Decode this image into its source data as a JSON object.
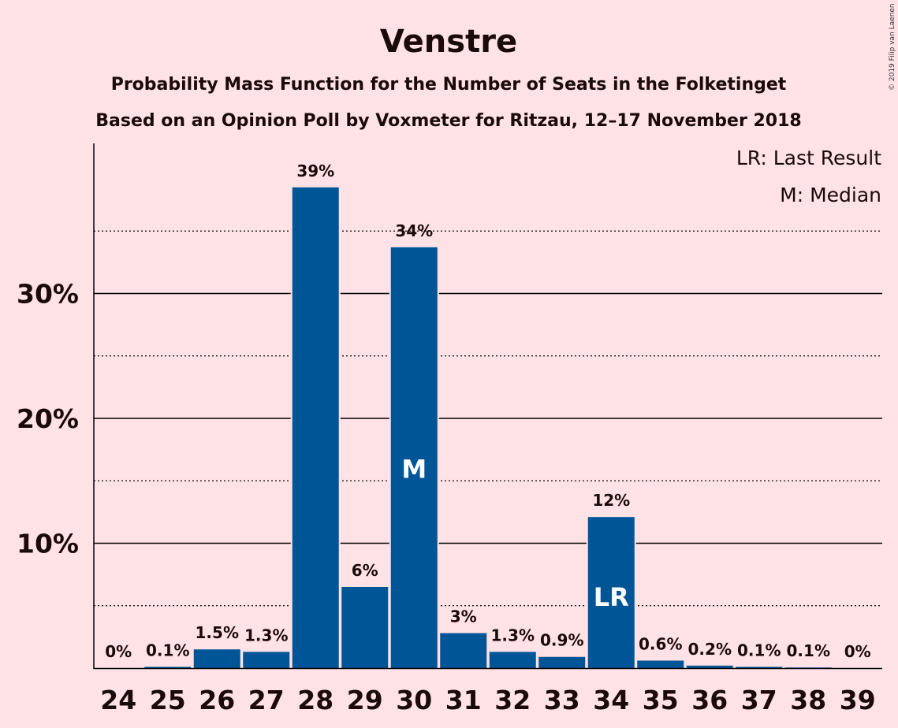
{
  "copyright": "© 2019 Filip van Laenen",
  "chart_data": {
    "type": "bar",
    "title": "Venstre",
    "subtitle_1": "Probability Mass Function for the Number of Seats in the Folketinget",
    "subtitle_2": "Based on an Opinion Poll by Voxmeter for Ritzau, 12–17 November 2018",
    "legend": [
      "LR: Last Result",
      "M: Median"
    ],
    "categories": [
      "24",
      "25",
      "26",
      "27",
      "28",
      "29",
      "30",
      "31",
      "32",
      "33",
      "34",
      "35",
      "36",
      "37",
      "38",
      "39"
    ],
    "values": [
      0,
      0.1,
      1.5,
      1.3,
      38.5,
      6.5,
      33.7,
      2.8,
      1.3,
      0.9,
      12.1,
      0.6,
      0.2,
      0.1,
      0.05,
      0
    ],
    "value_labels": [
      "0%",
      "0.1%",
      "1.5%",
      "1.3%",
      "39%",
      "6%",
      "34%",
      "3%",
      "1.3%",
      "0.9%",
      "12%",
      "0.6%",
      "0.2%",
      "0.1%",
      "0.1%",
      "0%"
    ],
    "ylim": [
      0,
      42
    ],
    "yticks": [
      {
        "value": 10,
        "label": "10%"
      },
      {
        "value": 20,
        "label": "20%"
      },
      {
        "value": 30,
        "label": "30%"
      }
    ],
    "minor_gridlines": [
      5,
      15,
      25,
      35
    ],
    "median_category": "30",
    "median_marker": "M",
    "last_result_category": "34",
    "last_result_marker": "LR",
    "bar_color": "#005596",
    "background_color": "#ffe2e6"
  }
}
